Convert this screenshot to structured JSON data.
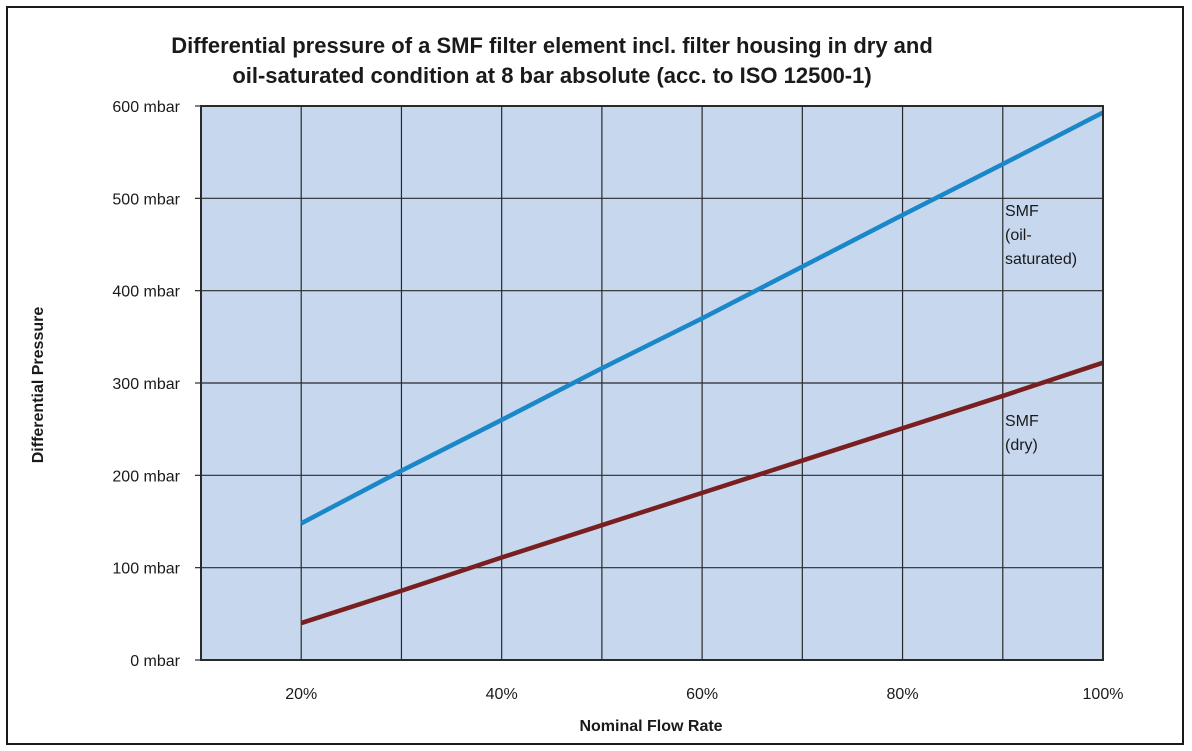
{
  "chart_data": {
    "type": "line",
    "title": [
      "Differential pressure of a  SMF filter element incl. filter housing in dry and",
      "oil-saturated condition at 8 bar absolute (acc. to ISO 12500-1)"
    ],
    "xlabel": "Nominal Flow Rate",
    "ylabel": "Differential Pressure",
    "xlim": [
      10,
      100
    ],
    "ylim": [
      0,
      600
    ],
    "x_ticks": [
      20,
      40,
      60,
      80,
      100
    ],
    "x_tick_labels": [
      "20%",
      "40%",
      "60%",
      "80%",
      "100%"
    ],
    "y_ticks": [
      0,
      100,
      200,
      300,
      400,
      500,
      600
    ],
    "y_tick_labels": [
      "0 mbar",
      "100 mbar",
      "200 mbar",
      "300 mbar",
      "400 mbar",
      "500 mbar",
      "600 mbar"
    ],
    "grid": true,
    "colors": {
      "plot_background": "#c6d7ee",
      "grid": "#2a2a2a",
      "oil_saturated": "#1a87c9",
      "dry": "#7a1f1f"
    },
    "series": [
      {
        "name": "SMF (oil-saturated)",
        "label_lines": [
          "SMF",
          "(oil-",
          "saturated)"
        ],
        "color": "#1a87c9",
        "x": [
          20,
          30,
          40,
          50,
          60,
          70,
          80,
          90,
          100
        ],
        "y": [
          148,
          205,
          260,
          316,
          370,
          426,
          482,
          537,
          593
        ]
      },
      {
        "name": "SMF (dry)",
        "label_lines": [
          "SMF",
          "(dry)"
        ],
        "color": "#7a1f1f",
        "x": [
          20,
          30,
          40,
          50,
          60,
          70,
          80,
          90,
          100
        ],
        "y": [
          40,
          75,
          111,
          146,
          181,
          216,
          251,
          286,
          322
        ]
      }
    ]
  }
}
